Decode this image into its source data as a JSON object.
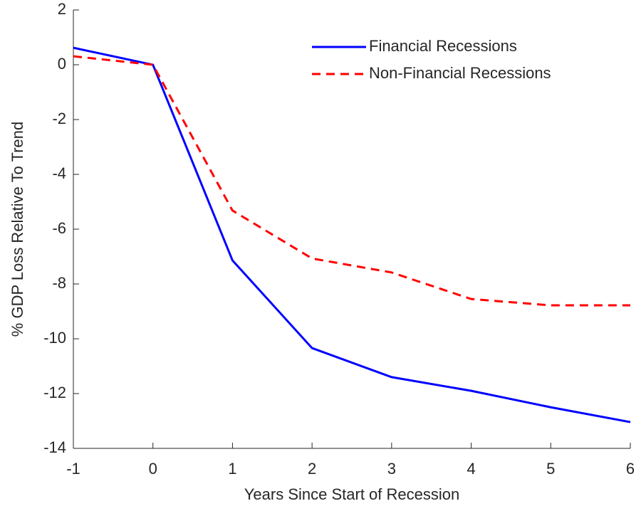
{
  "chart_data": {
    "type": "line",
    "x": [
      -1,
      0,
      1,
      2,
      3,
      4,
      5,
      6
    ],
    "series": [
      {
        "name": "Financial Recessions",
        "color": "#0000ff",
        "dash": "solid",
        "values": [
          0.62,
          0,
          -7.14,
          -10.34,
          -11.4,
          -11.9,
          -12.5,
          -13.04
        ]
      },
      {
        "name": "Non-Financial Recessions",
        "color": "#ff0000",
        "dash": "dashed",
        "values": [
          0.31,
          0,
          -5.32,
          -7.07,
          -7.58,
          -8.55,
          -8.78,
          -8.78
        ]
      }
    ],
    "xlabel": "Years Since Start of Recession",
    "ylabel": "% GDP Loss Relative To Trend",
    "xlim": [
      -1,
      6
    ],
    "xticks": [
      -1,
      0,
      1,
      2,
      3,
      4,
      5,
      6
    ],
    "ylim": [
      -14,
      2
    ],
    "yticks": [
      -14,
      -12,
      -10,
      -8,
      -6,
      -4,
      -2,
      0,
      2
    ],
    "legend": "top-right",
    "grid": false
  }
}
